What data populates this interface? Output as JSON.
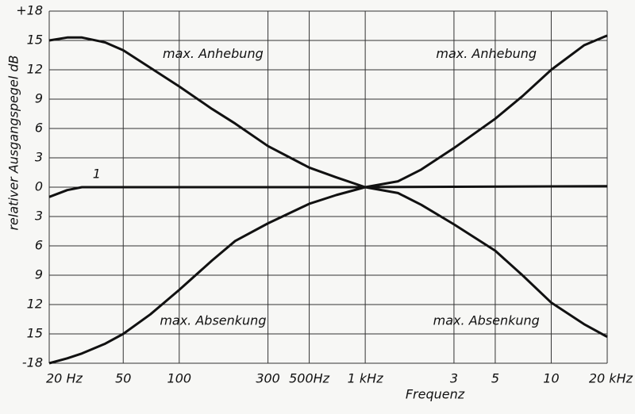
{
  "chart_data": {
    "type": "line",
    "xscale": "log",
    "xlabel": "Frequenz",
    "ylabel": "relativer Ausgangspegel  dB",
    "xlim": [
      20,
      20000
    ],
    "ylim": [
      -18,
      18
    ],
    "xticks": [
      {
        "value": 20,
        "label": "20 Hz"
      },
      50,
      100,
      300,
      {
        "value": 500,
        "label": "500Hz"
      },
      {
        "value": 1000,
        "label": "1 kHz"
      },
      {
        "value": 3000,
        "label": "3"
      },
      {
        "value": 5000,
        "label": "5"
      },
      {
        "value": 10000,
        "label": "10"
      },
      {
        "value": 20000,
        "label": "20 kHz"
      }
    ],
    "yticks": [
      {
        "value": -18,
        "label": "-18"
      },
      {
        "value": -15,
        "label": "15"
      },
      {
        "value": -12,
        "label": "12"
      },
      {
        "value": -9,
        "label": "9"
      },
      {
        "value": -6,
        "label": "6"
      },
      {
        "value": -3,
        "label": "3"
      },
      0,
      3,
      6,
      9,
      12,
      15,
      {
        "value": 18,
        "label": "+18"
      }
    ],
    "grid": true,
    "series": [
      {
        "color": "#111111",
        "x": [
          20,
          25,
          30,
          40,
          50,
          70,
          100,
          150,
          200,
          300,
          500,
          700,
          1000,
          1500,
          2000,
          3000,
          5000,
          7000,
          10000,
          15000,
          20000
        ],
        "values": [
          15.0,
          15.3,
          15.3,
          14.8,
          14.0,
          12.2,
          10.3,
          8.0,
          6.5,
          4.2,
          2.0,
          1.0,
          0.0,
          0.6,
          1.8,
          4.0,
          7.0,
          9.3,
          12.0,
          14.5,
          15.5
        ]
      },
      {
        "color": "#111111",
        "x": [
          20,
          25,
          30,
          40,
          50,
          70,
          100,
          150,
          200,
          300,
          500,
          700,
          1000,
          1500,
          2000,
          3000,
          5000,
          7000,
          10000,
          15000,
          20000
        ],
        "values": [
          -18.0,
          -17.5,
          -17.0,
          -16.0,
          -15.0,
          -13.0,
          -10.5,
          -7.5,
          -5.5,
          -3.7,
          -1.7,
          -0.8,
          0.0,
          -0.6,
          -1.8,
          -3.8,
          -6.5,
          -9.0,
          -11.8,
          -14.0,
          -15.3
        ]
      },
      {
        "color": "#111111",
        "x": [
          20,
          25,
          30,
          50,
          1000,
          20000
        ],
        "values": [
          -1.0,
          -0.3,
          0.0,
          0.0,
          0.0,
          0.1
        ]
      }
    ],
    "annotations": [
      {
        "text": "max. Anhebung",
        "x": 152,
        "y": 13.6
      },
      {
        "text": "max. Anhebung",
        "x": 4480,
        "y": 13.6
      },
      {
        "text": "max. Absenkung",
        "x": 152,
        "y": -13.7
      },
      {
        "text": "max. Absenkung",
        "x": 4480,
        "y": -13.7
      },
      {
        "text": "1",
        "x": 36,
        "y": 1.3
      }
    ]
  }
}
